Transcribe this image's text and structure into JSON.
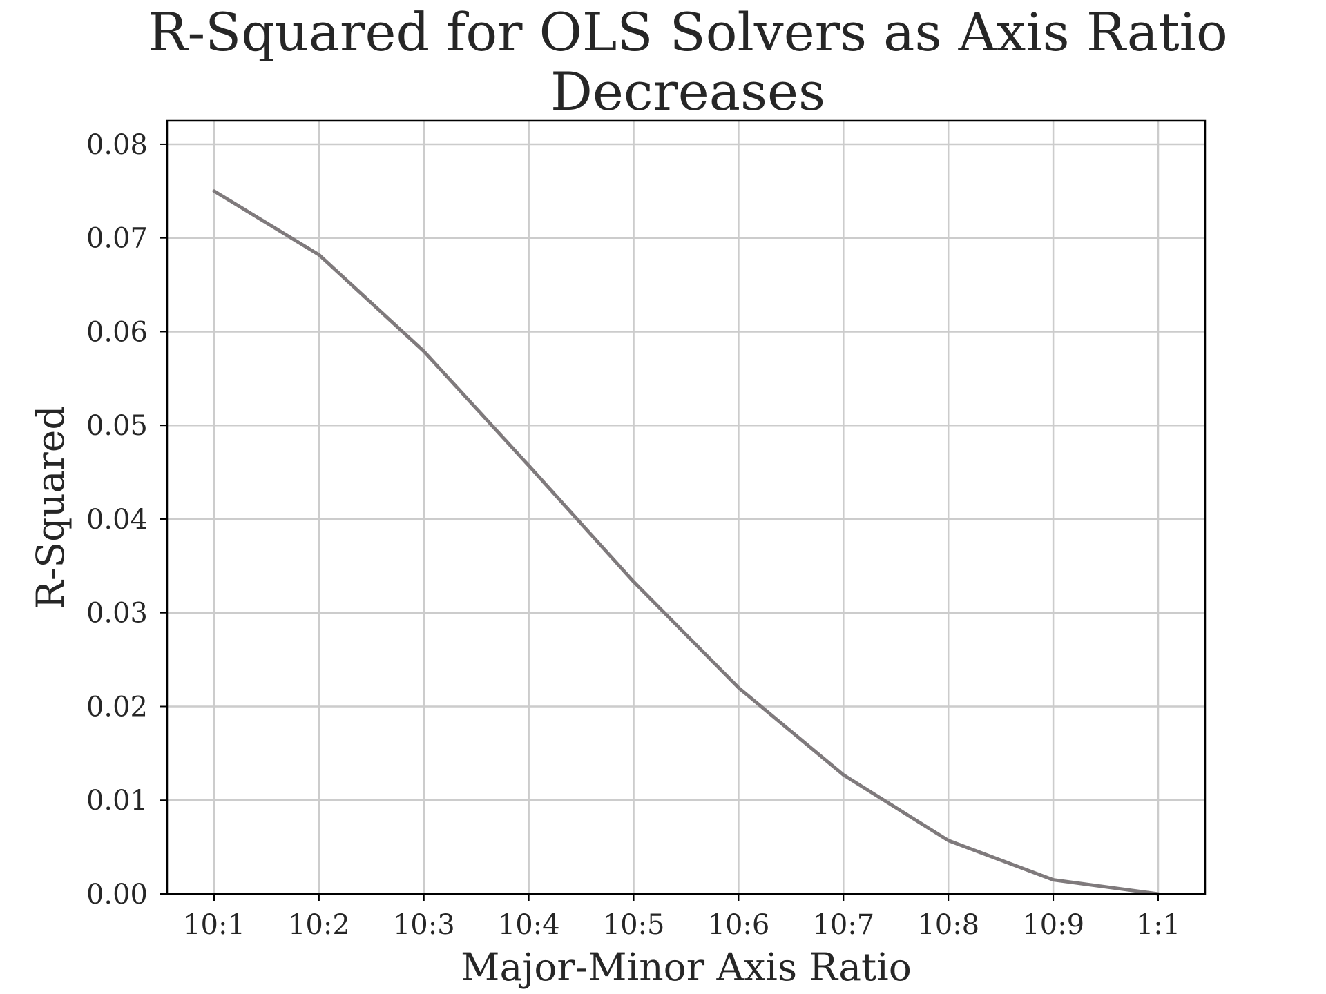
{
  "chart_data": {
    "type": "line",
    "title_lines": [
      "R-Squared for OLS Solvers as Axis Ratio",
      "Decreases"
    ],
    "xlabel": "Major-Minor Axis Ratio",
    "ylabel": "R-Squared",
    "categories": [
      "10:1",
      "10:2",
      "10:3",
      "10:4",
      "10:5",
      "10:6",
      "10:7",
      "10:8",
      "10:9",
      "1:1"
    ],
    "series": [
      {
        "values": [
          0.075,
          0.0682,
          0.0579,
          0.0457,
          0.0333,
          0.022,
          0.0127,
          0.0057,
          0.0015,
          0.0
        ],
        "color": "#7f7a7c"
      }
    ],
    "ylim": [
      0,
      0.0825
    ],
    "yticks": [
      "0.00",
      "0.01",
      "0.02",
      "0.03",
      "0.04",
      "0.05",
      "0.06",
      "0.07",
      "0.08"
    ],
    "grid": true,
    "legend": "none",
    "colors": {
      "grid": "#cccccc",
      "axes": "#000000",
      "text": "#262626"
    }
  }
}
